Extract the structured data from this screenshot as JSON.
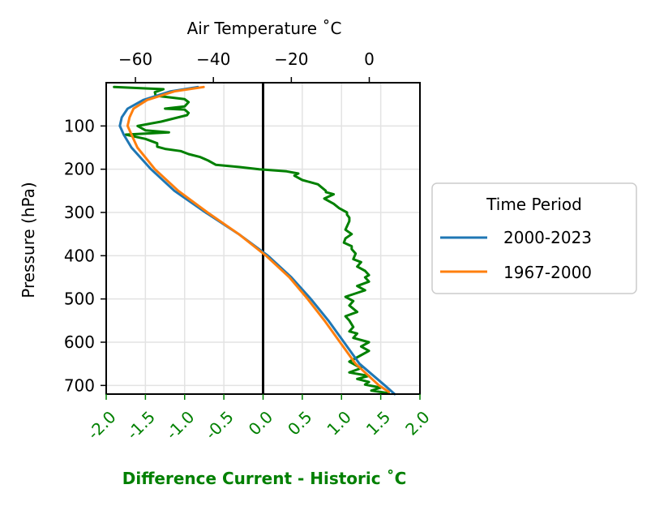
{
  "chart_data": {
    "type": "line",
    "orientation": "vertical-profile",
    "yaxis": {
      "label": "Pressure (hPa)",
      "range": [
        720,
        0
      ],
      "ticks": [
        100,
        200,
        300,
        400,
        500,
        600,
        700
      ],
      "inverted": true
    },
    "top_xaxis": {
      "label": "Air Temperature ˚C",
      "range": [
        -67.5,
        13
      ],
      "ticks": [
        -60,
        -40,
        -20,
        0
      ],
      "tick_labels": [
        "−60",
        "−40",
        "−20",
        "0"
      ]
    },
    "bottom_xaxis": {
      "label": "Difference  Current - Historic ˚C",
      "range": [
        -2.0,
        2.0
      ],
      "ticks": [
        -2.0,
        -1.5,
        -1.0,
        -0.5,
        0.0,
        0.5,
        1.0,
        1.5,
        2.0
      ],
      "tick_labels": [
        "-2.0",
        "-1.5",
        "-1.0",
        "-0.5",
        "0.0",
        "0.5",
        "1.0",
        "1.5",
        "2.0"
      ],
      "color": "#008000"
    },
    "grid": true,
    "legend": {
      "title": "Time Period",
      "placement": "outside-right"
    },
    "series": [
      {
        "name": "2000-2023",
        "axis": "top",
        "color": "#1f77b4",
        "pressure": [
          10,
          20,
          40,
          60,
          80,
          100,
          120,
          150,
          200,
          250,
          300,
          350,
          400,
          450,
          500,
          550,
          600,
          650,
          700,
          720
        ],
        "temperature": [
          -44,
          -51,
          -58,
          -62,
          -63.5,
          -64,
          -63,
          -61,
          -56,
          -50,
          -42,
          -33.5,
          -26,
          -20,
          -15,
          -10.5,
          -6.5,
          -2.5,
          4,
          6.5
        ]
      },
      {
        "name": "1967-2000",
        "axis": "top",
        "color": "#ff7f0e",
        "pressure": [
          10,
          20,
          40,
          60,
          80,
          100,
          120,
          150,
          200,
          250,
          300,
          350,
          400,
          450,
          500,
          550,
          600,
          650,
          700,
          715
        ],
        "temperature": [
          -42.5,
          -50,
          -57,
          -60.5,
          -61.5,
          -62,
          -61,
          -59.5,
          -55,
          -49,
          -41.5,
          -33.5,
          -26.5,
          -20.5,
          -15.8,
          -11.5,
          -7.5,
          -3.5,
          2.5,
          5
        ]
      },
      {
        "name": "Difference",
        "axis": "bottom",
        "color": "#008000",
        "pressure": [
          10,
          15,
          22,
          30,
          38,
          45,
          55,
          60,
          62,
          70,
          75,
          90,
          100,
          110,
          115,
          120,
          130,
          140,
          148,
          153,
          158,
          165,
          172,
          180,
          190,
          195,
          200,
          205,
          210,
          212,
          215,
          225,
          235,
          250,
          253,
          258,
          268,
          280,
          290,
          300,
          305,
          312,
          320,
          340,
          350,
          360,
          370,
          378,
          385,
          395,
          408,
          415,
          425,
          435,
          445,
          450,
          460,
          470,
          480,
          495,
          505,
          515,
          530,
          540,
          550,
          565,
          575,
          580,
          590,
          600,
          610,
          620,
          630,
          645,
          650,
          660,
          670,
          678,
          685,
          692,
          698,
          705,
          712,
          718
        ],
        "values": [
          -1.9,
          -1.27,
          -1.38,
          -1.37,
          -1.0,
          -0.95,
          -1.0,
          -1.25,
          -1.0,
          -0.95,
          -0.97,
          -1.3,
          -1.6,
          -1.5,
          -1.2,
          -1.75,
          -1.5,
          -1.35,
          -1.35,
          -1.25,
          -1.05,
          -0.95,
          -0.8,
          -0.7,
          -0.6,
          -0.3,
          -0.05,
          0.3,
          0.45,
          0.42,
          0.4,
          0.5,
          0.7,
          0.8,
          0.8,
          0.9,
          0.78,
          0.9,
          0.97,
          1.07,
          1.07,
          1.1,
          1.1,
          1.05,
          1.13,
          1.05,
          1.03,
          1.13,
          1.13,
          1.18,
          1.15,
          1.25,
          1.2,
          1.3,
          1.35,
          1.3,
          1.35,
          1.2,
          1.3,
          1.05,
          1.15,
          1.1,
          1.2,
          1.05,
          1.1,
          1.15,
          1.1,
          1.2,
          1.15,
          1.35,
          1.25,
          1.35,
          1.25,
          1.1,
          1.15,
          1.25,
          1.1,
          1.35,
          1.2,
          1.35,
          1.3,
          1.5,
          1.38,
          1.6
        ]
      }
    ]
  }
}
